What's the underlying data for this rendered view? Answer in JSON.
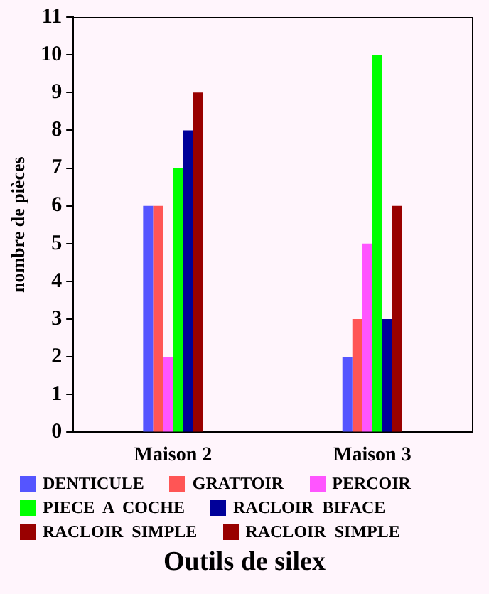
{
  "chart_data": {
    "type": "bar",
    "xlabel": "Outils de silex",
    "ylabel": "nombre de pièces",
    "categories": [
      "Maison 2",
      "Maison 3"
    ],
    "series": [
      {
        "name": "DENTICULE",
        "color": "#5555ff",
        "values": [
          6,
          2
        ]
      },
      {
        "name": "GRATTOIR",
        "color": "#ff5555",
        "values": [
          6,
          3
        ]
      },
      {
        "name": "PERCOIR",
        "color": "#ff55ff",
        "values": [
          2,
          5
        ]
      },
      {
        "name": "PIECE  A  COCHE",
        "color": "#00ff00",
        "values": [
          7,
          10
        ]
      },
      {
        "name": "RACLOIR  BIFACE",
        "color": "#000099",
        "values": [
          8,
          3
        ]
      },
      {
        "name": "RACLOIR  SIMPLE",
        "color": "#990000",
        "values": [
          9,
          6
        ]
      },
      {
        "name": "RACLOIR  SIMPLE",
        "color": "#990000",
        "values": [
          null,
          null
        ]
      }
    ],
    "ylim": [
      0,
      11
    ],
    "yticks": [
      0,
      1,
      2,
      3,
      4,
      5,
      6,
      7,
      8,
      9,
      10,
      11
    ],
    "grid": false,
    "legend": "bottom"
  }
}
